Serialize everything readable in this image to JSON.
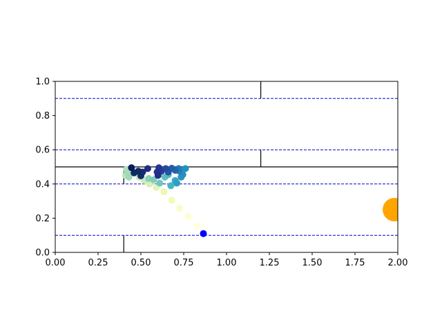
{
  "chart_data": {
    "type": "scatter",
    "title": "",
    "xlabel": "",
    "ylabel": "",
    "xlim": [
      0,
      2
    ],
    "ylim": [
      0,
      1
    ],
    "grid": false,
    "x_ticks": [
      {
        "value": 0.0,
        "label": "0.00"
      },
      {
        "value": 0.25,
        "label": "0.25"
      },
      {
        "value": 0.5,
        "label": "0.50"
      },
      {
        "value": 0.75,
        "label": "0.75"
      },
      {
        "value": 1.0,
        "label": "1.00"
      },
      {
        "value": 1.25,
        "label": "1.25"
      },
      {
        "value": 1.5,
        "label": "1.50"
      },
      {
        "value": 1.75,
        "label": "1.75"
      },
      {
        "value": 2.0,
        "label": "2.00"
      }
    ],
    "y_ticks": [
      {
        "value": 0.0,
        "label": "0.0"
      },
      {
        "value": 0.2,
        "label": "0.2"
      },
      {
        "value": 0.4,
        "label": "0.4"
      },
      {
        "value": 0.6,
        "label": "0.6"
      },
      {
        "value": 0.8,
        "label": "0.8"
      },
      {
        "value": 1.0,
        "label": "1.0"
      }
    ],
    "dashed_lines": {
      "color": "#0000cc",
      "y": [
        0.1,
        0.4,
        0.6,
        0.9
      ]
    },
    "wall_segments": {
      "color": "#000000",
      "segments": [
        {
          "x": [
            0,
            2
          ],
          "y": [
            0.5,
            0.5
          ]
        },
        {
          "x": [
            1.2,
            1.2
          ],
          "y": [
            0.5,
            0.6
          ]
        },
        {
          "x": [
            1.2,
            1.2
          ],
          "y": [
            0.9,
            1.0
          ]
        },
        {
          "x": [
            0.4,
            0.4
          ],
          "y": [
            0,
            0.1
          ]
        },
        {
          "x": [
            0.4,
            0.4
          ],
          "y": [
            0.4,
            0.5
          ]
        }
      ]
    },
    "target": {
      "x": 1.98,
      "y": 0.25,
      "color": "#ffa500"
    },
    "agent": {
      "x": 0.865,
      "y": 0.11,
      "color": "#0000ff"
    },
    "trail": [
      {
        "x": 0.83,
        "y": 0.155,
        "color": "#ffffd9"
      },
      {
        "x": 0.775,
        "y": 0.21,
        "color": "#fcfed5"
      },
      {
        "x": 0.725,
        "y": 0.258,
        "color": "#f8fcc9"
      },
      {
        "x": 0.68,
        "y": 0.305,
        "color": "#f3fab9"
      },
      {
        "x": 0.635,
        "y": 0.355,
        "color": "#edf8b1"
      },
      {
        "x": 0.59,
        "y": 0.38,
        "color": "#e4f4b2"
      },
      {
        "x": 0.55,
        "y": 0.4,
        "color": "#d9efb3"
      },
      {
        "x": 0.52,
        "y": 0.42,
        "color": "#cdebb4"
      },
      {
        "x": 0.49,
        "y": 0.44,
        "color": "#c7e9b4"
      },
      {
        "x": 0.41,
        "y": 0.45,
        "color": "#bde5b5"
      },
      {
        "x": 0.415,
        "y": 0.485,
        "color": "#b2e1b6"
      },
      {
        "x": 0.42,
        "y": 0.465,
        "color": "#a3dbb7"
      },
      {
        "x": 0.43,
        "y": 0.44,
        "color": "#a0d9b8"
      },
      {
        "x": 0.545,
        "y": 0.432,
        "color": "#8ad1bb"
      },
      {
        "x": 0.575,
        "y": 0.425,
        "color": "#7fcdbb"
      },
      {
        "x": 0.61,
        "y": 0.405,
        "color": "#6fc6bd"
      },
      {
        "x": 0.64,
        "y": 0.44,
        "color": "#5ebfc0"
      },
      {
        "x": 0.66,
        "y": 0.455,
        "color": "#4eb8c2"
      },
      {
        "x": 0.675,
        "y": 0.39,
        "color": "#41b6c4"
      },
      {
        "x": 0.7,
        "y": 0.42,
        "color": "#37a8c4"
      },
      {
        "x": 0.71,
        "y": 0.405,
        "color": "#2f9ec2"
      },
      {
        "x": 0.735,
        "y": 0.44,
        "color": "#2b94c1"
      },
      {
        "x": 0.745,
        "y": 0.455,
        "color": "#2c8ebe"
      },
      {
        "x": 0.76,
        "y": 0.49,
        "color": "#1d91c0"
      },
      {
        "x": 0.725,
        "y": 0.475,
        "color": "#2284bb"
      },
      {
        "x": 0.72,
        "y": 0.49,
        "color": "#2279b5"
      },
      {
        "x": 0.7,
        "y": 0.48,
        "color": "#2264ab"
      },
      {
        "x": 0.68,
        "y": 0.492,
        "color": "#225ea8"
      },
      {
        "x": 0.66,
        "y": 0.47,
        "color": "#2353a2"
      },
      {
        "x": 0.645,
        "y": 0.49,
        "color": "#24499d"
      },
      {
        "x": 0.62,
        "y": 0.475,
        "color": "#253f98"
      },
      {
        "x": 0.605,
        "y": 0.495,
        "color": "#253494"
      },
      {
        "x": 0.595,
        "y": 0.47,
        "color": "#24318c"
      },
      {
        "x": 0.6,
        "y": 0.45,
        "color": "#222e85"
      },
      {
        "x": 0.54,
        "y": 0.49,
        "color": "#202b7e"
      },
      {
        "x": 0.51,
        "y": 0.47,
        "color": "#1a2a74"
      },
      {
        "x": 0.5,
        "y": 0.448,
        "color": "#152b6b"
      },
      {
        "x": 0.485,
        "y": 0.475,
        "color": "#0f2c64"
      },
      {
        "x": 0.46,
        "y": 0.465,
        "color": "#0c2c5e"
      },
      {
        "x": 0.445,
        "y": 0.495,
        "color": "#081d58"
      }
    ]
  }
}
